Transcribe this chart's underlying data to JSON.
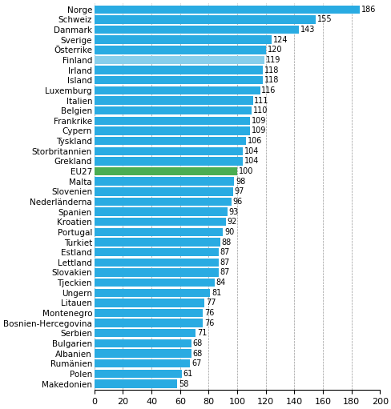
{
  "categories": [
    "Norge",
    "Schweiz",
    "Danmark",
    "Sverige",
    "Österrike",
    "Finland",
    "Irland",
    "Island",
    "Luxemburg",
    "Italien",
    "Belgien",
    "Frankrike",
    "Cypern",
    "Tyskland",
    "Storbritannien",
    "Grekland",
    "EU27",
    "Malta",
    "Slovenien",
    "Nederländerna",
    "Spanien",
    "Kroatien",
    "Portugal",
    "Turkiet",
    "Estland",
    "Lettland",
    "Slovakien",
    "Tjeckien",
    "Ungern",
    "Litauen",
    "Montenegro",
    "Bosnien-Hercegovina",
    "Serbien",
    "Bulgarien",
    "Albanien",
    "Rumänien",
    "Polen",
    "Makedonien"
  ],
  "values": [
    186,
    155,
    143,
    124,
    120,
    119,
    118,
    118,
    116,
    111,
    110,
    109,
    109,
    106,
    104,
    104,
    100,
    98,
    97,
    96,
    93,
    92,
    90,
    88,
    87,
    87,
    87,
    84,
    81,
    77,
    76,
    76,
    71,
    68,
    68,
    67,
    61,
    58
  ],
  "colors": {
    "default_blue": "#29ABE2",
    "finland_light": "#87CEEB",
    "eu27_green": "#4AAD52"
  },
  "xlim": [
    0,
    200
  ],
  "xticks": [
    0,
    20,
    40,
    60,
    80,
    100,
    120,
    140,
    160,
    180,
    200
  ],
  "value_fontsize": 7,
  "label_fontsize": 7.5,
  "tick_fontsize": 8
}
